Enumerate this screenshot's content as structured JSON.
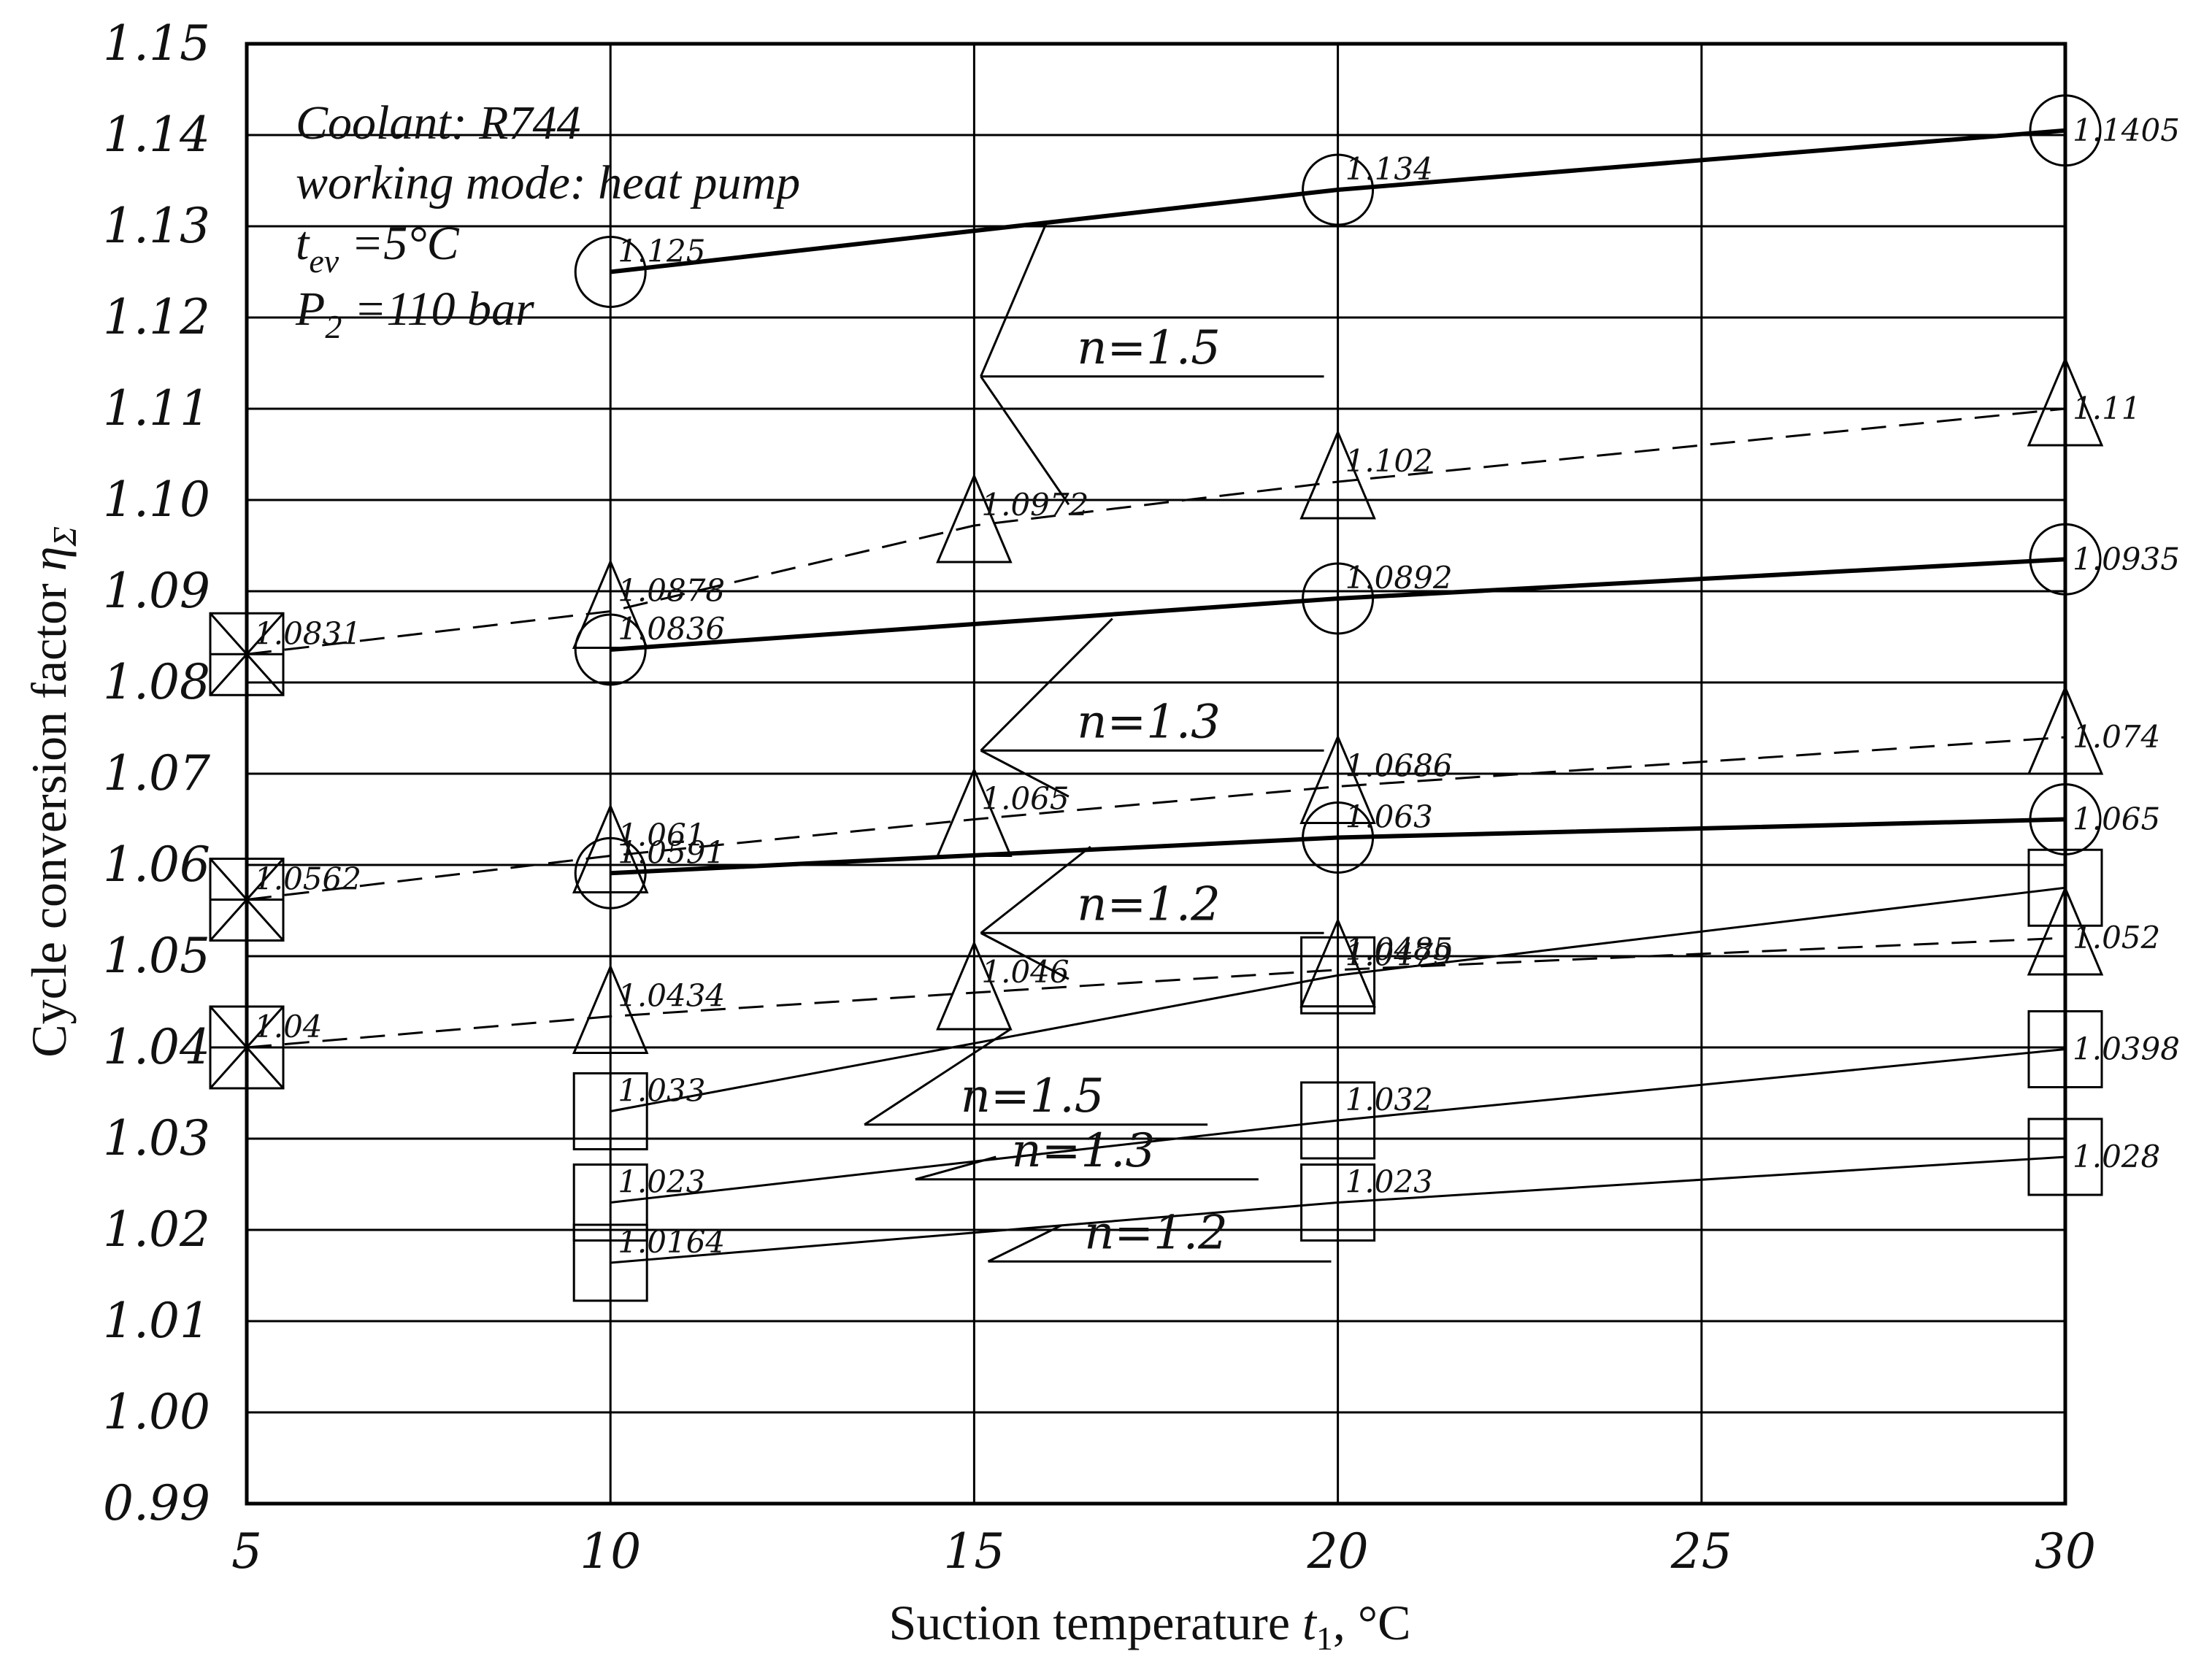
{
  "chart_data": {
    "type": "line",
    "xlabel": "Suction temperature t1, °C",
    "xlabel_parts": {
      "main": "Suction temperature ",
      "var": "t",
      "sub": "1",
      "unit": ", °C"
    },
    "ylabel": "Cycle conversion factor ηΣ",
    "ylabel_parts": {
      "main": "Cycle conversion factor ",
      "var": "η",
      "sub": "Σ"
    },
    "xlim": [
      5,
      30
    ],
    "ylim": [
      0.99,
      1.15
    ],
    "x_ticks": [
      "5",
      "10",
      "15",
      "20",
      "25",
      "30"
    ],
    "y_ticks": [
      "0.99",
      "1.00",
      "1.01",
      "1.02",
      "1.03",
      "1.04",
      "1.05",
      "1.06",
      "1.07",
      "1.08",
      "1.09",
      "1.10",
      "1.11",
      "1.12",
      "1.13",
      "1.14",
      "1.15"
    ],
    "grid": true,
    "info_lines": [
      {
        "main": "Coolant: R744"
      },
      {
        "main": "working mode: heat pump"
      },
      {
        "main": "t",
        "sub": "ev",
        "rest": " =5°C"
      },
      {
        "main": "P",
        "sub": "2",
        "rest": " =110 bar"
      }
    ],
    "series": [
      {
        "marker": "circle",
        "dash": false,
        "weight": "bold",
        "points": [
          [
            10,
            1.125,
            "1.125"
          ],
          [
            20,
            1.134,
            "1.134"
          ],
          [
            30,
            1.1405,
            "1.1405"
          ]
        ]
      },
      {
        "marker": "triangle",
        "dash": true,
        "weight": "thin",
        "points": [
          [
            5,
            1.0831,
            "1.0831"
          ],
          [
            10,
            1.0878,
            "1.0878"
          ],
          [
            15,
            1.0972,
            "1.0972"
          ],
          [
            20,
            1.102,
            "1.102"
          ],
          [
            30,
            1.11,
            "1.11"
          ]
        ]
      },
      {
        "marker": "circle",
        "dash": false,
        "weight": "bold",
        "points": [
          [
            10,
            1.0836,
            "1.0836"
          ],
          [
            20,
            1.0892,
            "1.0892"
          ],
          [
            30,
            1.0935,
            "1.0935"
          ]
        ]
      },
      {
        "marker": "triangle",
        "dash": true,
        "weight": "thin",
        "points": [
          [
            5,
            1.0562,
            "1.0562"
          ],
          [
            10,
            1.061,
            "1.061"
          ],
          [
            15,
            1.065,
            "1.065"
          ],
          [
            20,
            1.0686,
            "1.0686"
          ],
          [
            30,
            1.074,
            "1.074"
          ]
        ]
      },
      {
        "marker": "circle",
        "dash": false,
        "weight": "bold",
        "points": [
          [
            10,
            1.0591,
            "1.0591"
          ],
          [
            20,
            1.063,
            "1.063"
          ],
          [
            30,
            1.065,
            "1.065"
          ]
        ]
      },
      {
        "marker": "triangle",
        "dash": true,
        "weight": "thin",
        "points": [
          [
            5,
            1.04,
            "1.04"
          ],
          [
            10,
            1.0434,
            "1.0434"
          ],
          [
            15,
            1.046,
            "1.046"
          ],
          [
            20,
            1.0485,
            "1.0485"
          ],
          [
            30,
            1.052,
            "1.052"
          ]
        ]
      },
      {
        "marker": "square",
        "dash": false,
        "weight": "thin",
        "points": [
          [
            10,
            1.033,
            "1.033"
          ],
          [
            20,
            1.0479,
            "1.0479"
          ],
          [
            30,
            1.0575,
            ""
          ]
        ]
      },
      {
        "marker": "square",
        "dash": false,
        "weight": "thin",
        "points": [
          [
            10,
            1.023,
            "1.023"
          ],
          [
            20,
            1.032,
            "1.032"
          ],
          [
            30,
            1.0398,
            "1.0398"
          ]
        ]
      },
      {
        "marker": "square",
        "dash": false,
        "weight": "thin",
        "points": [
          [
            10,
            1.0164,
            "1.0164"
          ],
          [
            20,
            1.023,
            "1.023"
          ],
          [
            30,
            1.028,
            "1.028"
          ]
        ]
      }
    ],
    "origin_points": [
      [
        5,
        1.0831
      ],
      [
        5,
        1.0562
      ],
      [
        5,
        1.04
      ]
    ],
    "n_labels": [
      {
        "text": "n=1.5",
        "at": [
          17.4,
          1.1145
        ],
        "targets": [
          [
            16.0,
            1.1305
          ],
          [
            16.3,
            1.0995
          ]
        ]
      },
      {
        "text": "n=1.3",
        "at": [
          17.4,
          1.0735
        ],
        "targets": [
          [
            16.9,
            1.087
          ],
          [
            16.3,
            1.0675
          ]
        ]
      },
      {
        "text": "n=1.2",
        "at": [
          17.4,
          1.0535
        ],
        "targets": [
          [
            16.6,
            1.062
          ],
          [
            16.3,
            1.0475
          ]
        ]
      },
      {
        "text": "n=1.5",
        "at": [
          15.8,
          1.0325
        ],
        "targets": [
          [
            15.5,
            1.042
          ]
        ]
      },
      {
        "text": "n=1.3",
        "at": [
          16.5,
          1.0265
        ],
        "targets": [
          [
            15.3,
            1.028
          ]
        ]
      },
      {
        "text": "n=1.2",
        "at": [
          17.5,
          1.0175
        ],
        "targets": [
          [
            16.2,
            1.0205
          ]
        ]
      }
    ]
  }
}
